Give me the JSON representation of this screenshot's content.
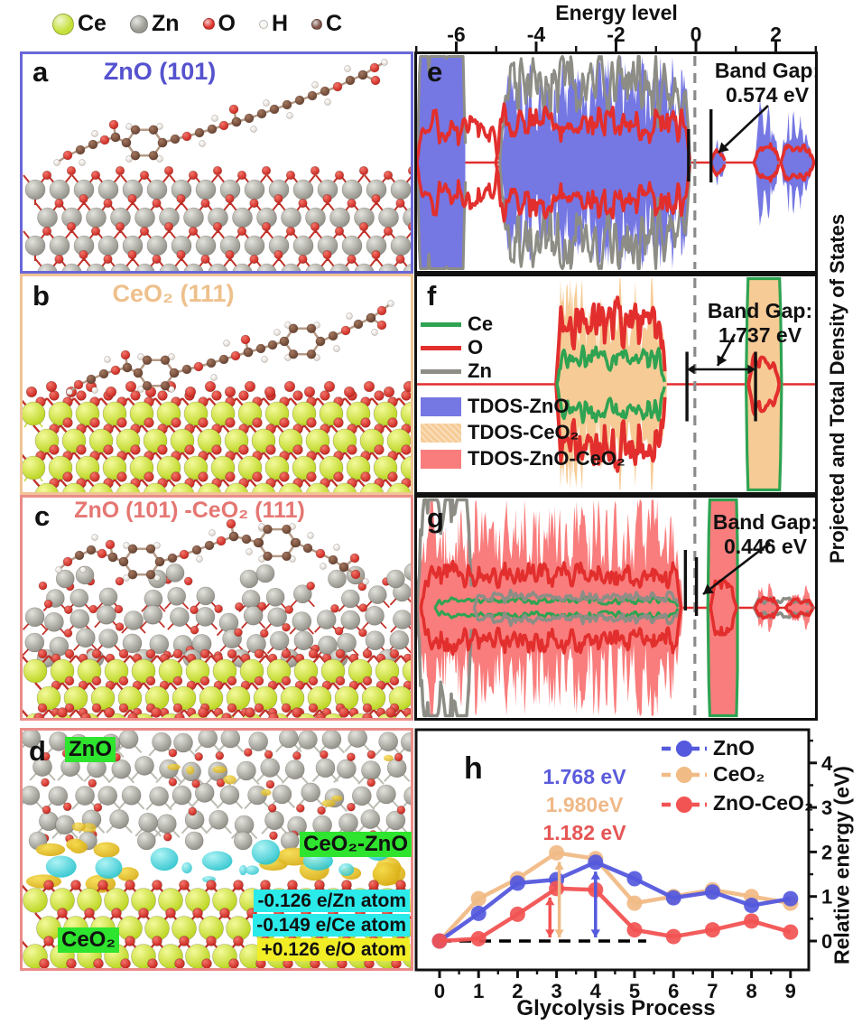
{
  "figure": {
    "atom_legend": [
      {
        "symbol": "Ce",
        "color": "#c6e03a",
        "r": 11
      },
      {
        "symbol": "Zn",
        "color": "#9b9b93",
        "r": 9
      },
      {
        "symbol": "O",
        "color": "#dc2f28",
        "r": 5.5
      },
      {
        "symbol": "H",
        "color": "#f7f3ef",
        "r": 4
      },
      {
        "symbol": "C",
        "color": "#7d5144",
        "r": 5
      }
    ],
    "top_axis": {
      "title": "Energy level",
      "tick_labels": [
        "-6",
        "-4",
        "-2",
        "0",
        "2"
      ],
      "tick_values": [
        -6,
        -4,
        -2,
        0,
        2
      ],
      "minor_ticks": [
        -7,
        -5,
        -3,
        -1,
        1,
        3
      ],
      "range": [
        -7.05,
        3.05
      ]
    },
    "dos_ylabel": "Projected and Total Density of States",
    "panels": {
      "a": {
        "letter": "a",
        "title": "ZnO (101)",
        "title_color": "#5552cf",
        "border": "#6a67d8"
      },
      "b": {
        "letter": "b",
        "title": "CeO₂ (111)",
        "title_color": "#eec08c",
        "border": "#f0c495"
      },
      "c": {
        "letter": "c",
        "title": "ZnO (101) -CeO₂ (111)",
        "title_color": "#e57672",
        "border": "#ea8d89"
      },
      "d": {
        "letter": "d",
        "border": "#ea8d89",
        "region_labels": [
          {
            "text": "ZnO",
            "bg": "#2ee42e"
          },
          {
            "text": "CeO₂-ZnO",
            "bg": "#2ee42e"
          },
          {
            "text": "CeO₂",
            "bg": "#2ee42e"
          }
        ],
        "charge_labels": [
          {
            "text": "-0.126 e/Zn atom",
            "bg": "#2beaea"
          },
          {
            "text": "-0.149 e/Ce atom",
            "bg": "#2beaea"
          },
          {
            "text": "+0.126 e/O atom",
            "bg": "#f2ee26"
          }
        ]
      },
      "e": {
        "letter": "e"
      },
      "f": {
        "letter": "f"
      },
      "g": {
        "letter": "g"
      },
      "h": {
        "letter": "h"
      }
    },
    "structure_colors": {
      "ce": [
        "#f4fa9b",
        "#b9d41c"
      ],
      "zn": [
        "#e3e3dd",
        "#8e8e86"
      ],
      "o": [
        "#f4756a",
        "#c6211a"
      ],
      "h": [
        "#ffffff",
        "#ded6ce"
      ],
      "c": [
        "#a4775f",
        "#64402f"
      ],
      "gold": [
        "#f6dc4e",
        "#d7ab12"
      ],
      "cyan": [
        "#a6f2f4",
        "#25c2cc"
      ],
      "bond": "#c23028",
      "bond2": "#bdbdb4"
    }
  },
  "chart_data": [
    {
      "id": "e",
      "type": "dos-area",
      "band_gap_label": "Band Gap:",
      "band_gap_value": "0.574 eV",
      "x_range": [
        -7.05,
        3.05
      ],
      "fermi_level": 0,
      "fill_color": "#7577e3",
      "fills": [
        [
          -7.05,
          -5.82,
          2.2
        ],
        [
          -4.97,
          -0.1,
          1.15
        ],
        [
          0.4,
          0.78,
          0.3
        ],
        [
          1.5,
          2.14,
          0.55
        ],
        [
          2.18,
          3.02,
          0.6
        ]
      ],
      "lines": [
        {
          "color": "#8d8d86",
          "width": 3,
          "segs": [
            [
              -7.05,
              -5.8,
              2.3
            ],
            [
              -4.95,
              -0.12,
              1.1
            ]
          ]
        },
        {
          "color": "#e22f2d",
          "width": 3.5,
          "segs": [
            [
              -7.05,
              -5.0,
              0.5
            ],
            [
              -5.05,
              -0.12,
              0.55
            ],
            [
              0.4,
              0.78,
              0.16
            ],
            [
              1.5,
              2.14,
              0.2
            ],
            [
              2.18,
              3.02,
              0.22
            ]
          ]
        }
      ],
      "gap_bars": [
        -0.16,
        0.41
      ]
    },
    {
      "id": "f",
      "type": "dos-area",
      "band_gap_label": "Band Gap:",
      "band_gap_value": "1.737 eV",
      "x_range": [
        -7.05,
        3.05
      ],
      "fermi_level": 0,
      "fill_color": "#f6cb96",
      "legend_lines": [
        {
          "label": "Ce",
          "color": "#2fa352"
        },
        {
          "label": "O",
          "color": "#e22f2d"
        },
        {
          "label": "Zn",
          "color": "#8d8d86"
        }
      ],
      "legend_fills": [
        {
          "label": "TDOS-ZnO",
          "color": "#7577e3"
        },
        {
          "label": "TDOS-CeO₂",
          "color": "#f6cb96"
        },
        {
          "label": "TDOS-ZnO-CeO₂",
          "color": "#f97d7d"
        }
      ],
      "fills": [
        [
          -3.56,
          -0.7,
          1.1
        ],
        [
          1.3,
          2.2,
          2.0,
          "#2fa352"
        ]
      ],
      "lines": [
        {
          "color": "#e22f2d",
          "width": 4,
          "segs": [
            [
              -3.52,
              -0.74,
              0.9
            ],
            [
              1.36,
              2.14,
              0.3
            ]
          ]
        },
        {
          "color": "#2fa352",
          "width": 3.5,
          "segs": [
            [
              -3.5,
              -0.76,
              0.38
            ]
          ]
        }
      ],
      "gap_bars": [
        -0.2,
        1.54
      ]
    },
    {
      "id": "g",
      "type": "dos-area",
      "band_gap_label": "Band Gap:",
      "band_gap_value": "0.446 eV",
      "x_range": [
        -7.05,
        3.05
      ],
      "fermi_level": 0,
      "fill_color": "#f97d7d",
      "fills": [
        [
          -7.05,
          -0.3,
          1.15
        ],
        [
          0.33,
          1.1,
          2.0,
          "#2fa352"
        ],
        [
          1.52,
          2.12,
          0.26
        ],
        [
          2.3,
          3.02,
          0.22
        ]
      ],
      "lines": [
        {
          "color": "#2fa352",
          "width": 3,
          "segs": [
            [
              -6.6,
              -0.4,
              0.1
            ]
          ]
        },
        {
          "color": "#8d8d86",
          "width": 3.5,
          "segs": [
            [
              -7.05,
              -5.65,
              1.7
            ],
            [
              -5.6,
              -0.35,
              0.16
            ],
            [
              1.5,
              3.0,
              0.1
            ]
          ]
        },
        {
          "color": "#e22f2d",
          "width": 3.5,
          "segs": [
            [
              -6.95,
              -0.35,
              0.45
            ],
            [
              0.4,
              1.06,
              0.3
            ],
            [
              1.52,
              2.12,
              0.12
            ],
            [
              2.3,
              3.0,
              0.1
            ]
          ]
        }
      ],
      "gap_bars": [
        -0.24,
        0.04
      ]
    },
    {
      "id": "h",
      "type": "line",
      "x": [
        0,
        1,
        2,
        3,
        4,
        5,
        6,
        7,
        8,
        9
      ],
      "series": [
        {
          "name": "ZnO",
          "color": "#5459dd",
          "values": [
            0,
            0.62,
            1.3,
            1.38,
            1.77,
            1.4,
            0.97,
            1.1,
            0.8,
            0.95
          ]
        },
        {
          "name": "CeO₂",
          "color": "#f1bb86",
          "values": [
            0,
            0.95,
            1.4,
            1.98,
            1.85,
            0.85,
            1.0,
            1.15,
            1.0,
            0.85
          ]
        },
        {
          "name": "ZnO-CeO₂",
          "color": "#f25353",
          "values": [
            0,
            0.05,
            0.6,
            1.18,
            1.15,
            0.25,
            0.1,
            0.25,
            0.45,
            0.2
          ]
        }
      ],
      "annotations": [
        {
          "text": "1.768 eV",
          "color": "#5b5bdc"
        },
        {
          "text": "1.980eV",
          "color": "#efb987"
        },
        {
          "text": "1.182 eV",
          "color": "#e65555"
        }
      ],
      "barrier_arrows": [
        {
          "x": 2.83,
          "top": 1.1,
          "color": "#f25353"
        },
        {
          "x": 3.07,
          "top": 1.9,
          "color": "#f1bb86"
        },
        {
          "x": 4.0,
          "top": 1.68,
          "color": "#5459dd"
        }
      ],
      "xlabel": "Glycolysis Process",
      "ylabel": "Relative energy (eV)",
      "yticks": [
        0,
        1,
        2,
        3,
        4
      ],
      "ylim": [
        -0.65,
        4.65
      ],
      "zero_line_dashed_to": 5.3
    }
  ]
}
